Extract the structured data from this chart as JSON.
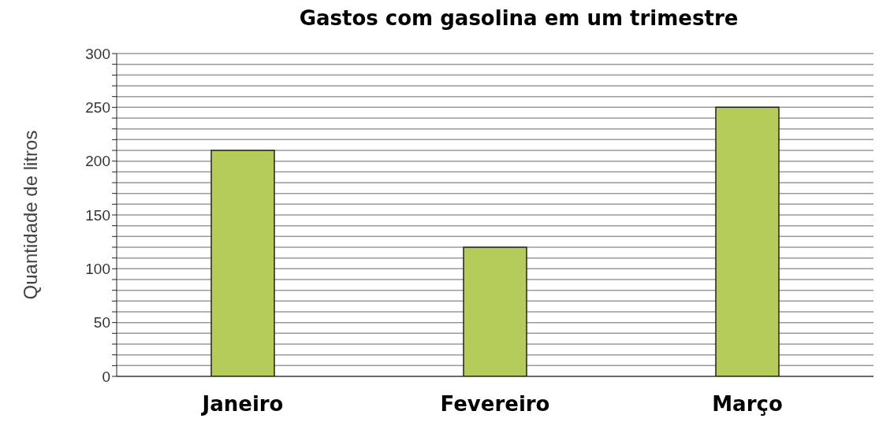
{
  "chart_data": {
    "type": "bar",
    "title": "Gastos com gasolina em um trimestre",
    "ylabel": "Quantidade de litros",
    "categories": [
      "Janeiro",
      "Fevereiro",
      "Março"
    ],
    "values": [
      210,
      120,
      250
    ],
    "color": "#b5cc5a",
    "ylim": [
      0,
      300
    ],
    "yticks": [
      0,
      {
        "value": 10,
        "label": null
      },
      {
        "value": 20,
        "label": null
      },
      {
        "value": 30,
        "label": null
      },
      {
        "value": 40,
        "label": null
      },
      50,
      {
        "value": 60,
        "label": null
      },
      {
        "value": 70,
        "label": null
      },
      {
        "value": 80,
        "label": null
      },
      {
        "value": 90,
        "label": null
      },
      100,
      {
        "value": 110,
        "label": null
      },
      {
        "value": 120,
        "label": null
      },
      {
        "value": 130,
        "label": null
      },
      {
        "value": 140,
        "label": null
      },
      150,
      {
        "value": 160,
        "label": null
      },
      {
        "value": 170,
        "label": null
      },
      {
        "value": 180,
        "label": null
      },
      {
        "value": 190,
        "label": null
      },
      200,
      {
        "value": 210,
        "label": null
      },
      {
        "value": 220,
        "label": null
      },
      {
        "value": 230,
        "label": null
      },
      {
        "value": 240,
        "label": null
      },
      250,
      {
        "value": 260,
        "label": null
      },
      {
        "value": 270,
        "label": null
      },
      {
        "value": 280,
        "label": null
      },
      {
        "value": 290,
        "label": null
      },
      300
    ],
    "grid": "y"
  }
}
